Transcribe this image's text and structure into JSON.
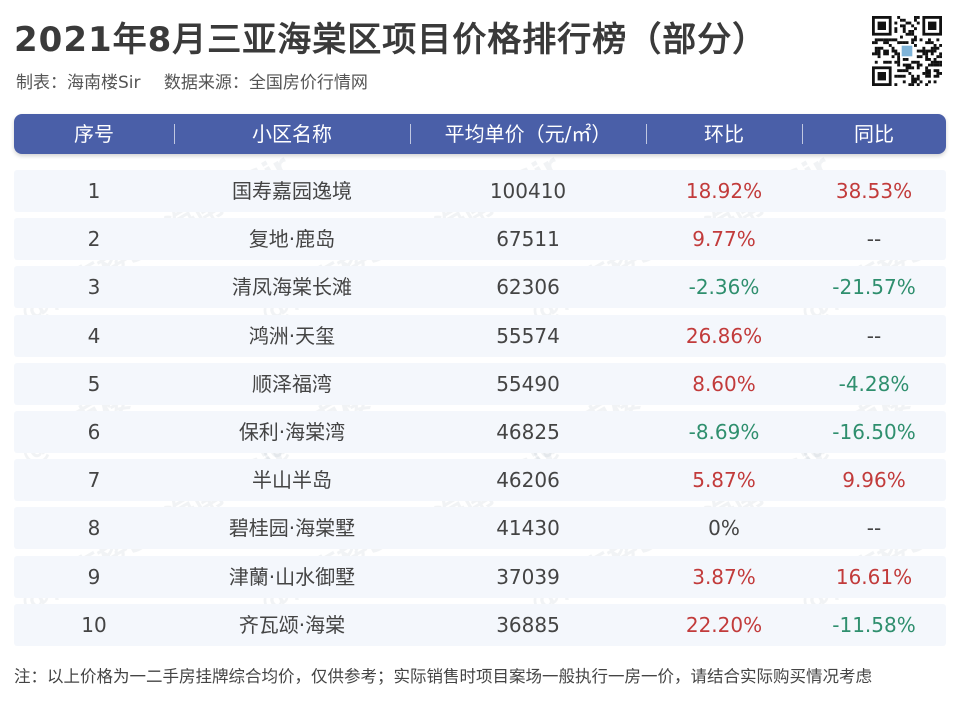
{
  "title": "2021年8月三亚海棠区项目价格排行榜（部分）",
  "subtitle": {
    "maker": "制表：海南楼Sir",
    "source": "数据来源：全国房价行情网"
  },
  "watermark": "@海南楼Sir",
  "table": {
    "columns": [
      "序号",
      "小区名称",
      "平均单价（元/㎡）",
      "环比",
      "同比"
    ],
    "rows": [
      {
        "rank": "1",
        "name": "国寿嘉园逸境",
        "price": "100410",
        "mom": "18.92%",
        "mom_trend": "up",
        "yoy": "38.53%",
        "yoy_trend": "up"
      },
      {
        "rank": "2",
        "name": "复地·鹿岛",
        "price": "67511",
        "mom": "9.77%",
        "mom_trend": "up",
        "yoy": "--",
        "yoy_trend": "none"
      },
      {
        "rank": "3",
        "name": "清凤海棠长滩",
        "price": "62306",
        "mom": "-2.36%",
        "mom_trend": "down",
        "yoy": "-21.57%",
        "yoy_trend": "down"
      },
      {
        "rank": "4",
        "name": "鸿洲·天玺",
        "price": "55574",
        "mom": "26.86%",
        "mom_trend": "up",
        "yoy": "--",
        "yoy_trend": "none"
      },
      {
        "rank": "5",
        "name": "顺泽福湾",
        "price": "55490",
        "mom": "8.60%",
        "mom_trend": "up",
        "yoy": "-4.28%",
        "yoy_trend": "down"
      },
      {
        "rank": "6",
        "name": "保利·海棠湾",
        "price": "46825",
        "mom": "-8.69%",
        "mom_trend": "down",
        "yoy": "-16.50%",
        "yoy_trend": "down"
      },
      {
        "rank": "7",
        "name": "半山半岛",
        "price": "46206",
        "mom": "5.87%",
        "mom_trend": "up",
        "yoy": "9.96%",
        "yoy_trend": "up"
      },
      {
        "rank": "8",
        "name": "碧桂园·海棠墅",
        "price": "41430",
        "mom": "0%",
        "mom_trend": "none",
        "yoy": "--",
        "yoy_trend": "none"
      },
      {
        "rank": "9",
        "name": "津蘭·山水御墅",
        "price": "37039",
        "mom": "3.87%",
        "mom_trend": "up",
        "yoy": "16.61%",
        "yoy_trend": "up"
      },
      {
        "rank": "10",
        "name": "齐瓦颂·海棠",
        "price": "36885",
        "mom": "22.20%",
        "mom_trend": "up",
        "yoy": "-11.58%",
        "yoy_trend": "down"
      }
    ]
  },
  "note": "注：以上价格为一二手房挂牌综合均价，仅供参考；实际销售时项目案场一般执行一房一价，请结合实际购买情况考虑",
  "colors": {
    "header_bg": "#4a5fa8",
    "row_bg": "#f4f7fc",
    "up": "#c23b3b",
    "down": "#2f8f6e"
  }
}
